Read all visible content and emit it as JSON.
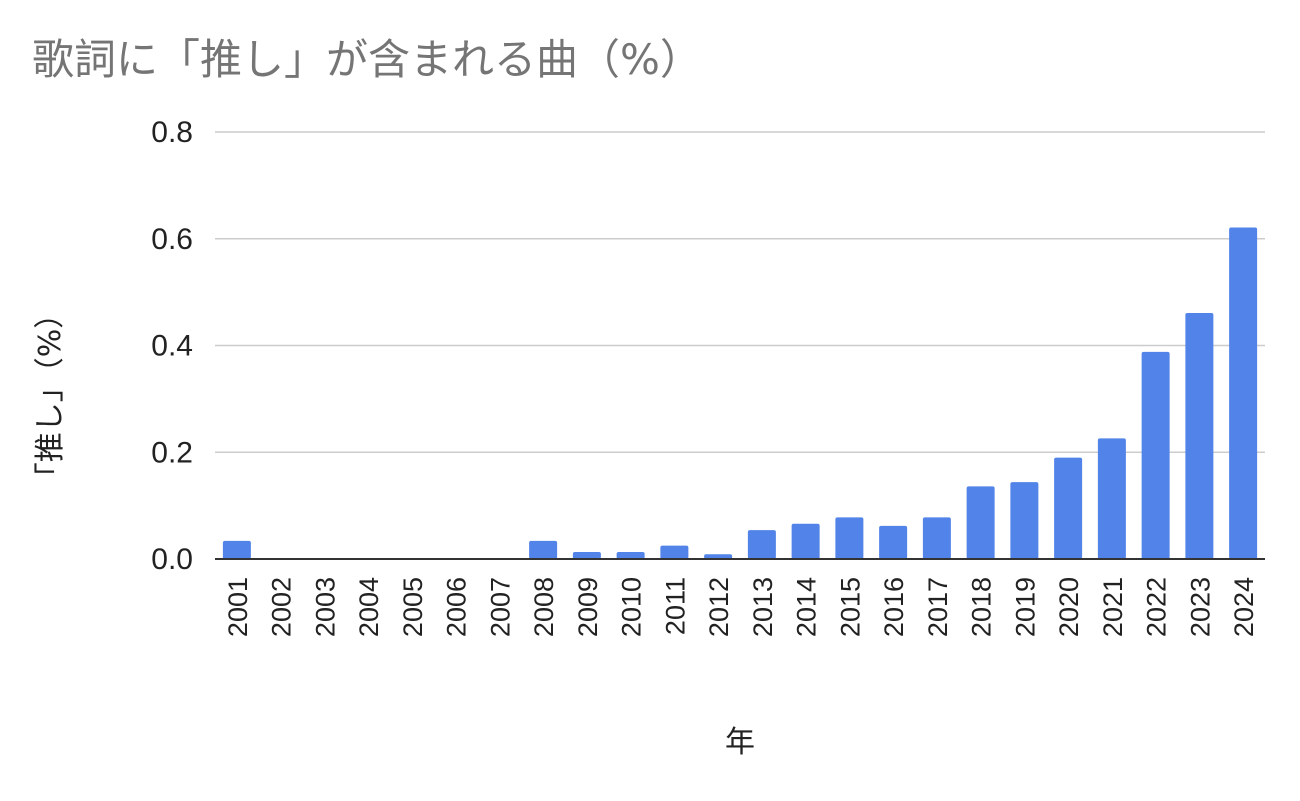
{
  "chart_data": {
    "type": "bar",
    "title": "歌詞に「推し」が含まれる曲（%）",
    "xlabel": "年",
    "ylabel": "「推し」（%）",
    "categories": [
      "2001",
      "2002",
      "2003",
      "2004",
      "2005",
      "2006",
      "2007",
      "2008",
      "2009",
      "2010",
      "2011",
      "2012",
      "2013",
      "2014",
      "2015",
      "2016",
      "2017",
      "2018",
      "2019",
      "2020",
      "2021",
      "2022",
      "2023",
      "2024"
    ],
    "values": [
      0.034,
      0,
      0,
      0,
      0,
      0,
      0,
      0.034,
      0.013,
      0.013,
      0.025,
      0.009,
      0.054,
      0.066,
      0.078,
      0.062,
      0.078,
      0.136,
      0.144,
      0.19,
      0.226,
      0.388,
      0.461,
      0.621
    ],
    "ylim": [
      0,
      0.8
    ],
    "yticks": [
      "0.0",
      "0.2",
      "0.4",
      "0.6",
      "0.8"
    ],
    "grid": true,
    "legend": "none",
    "bar_color": "#5183e8"
  }
}
